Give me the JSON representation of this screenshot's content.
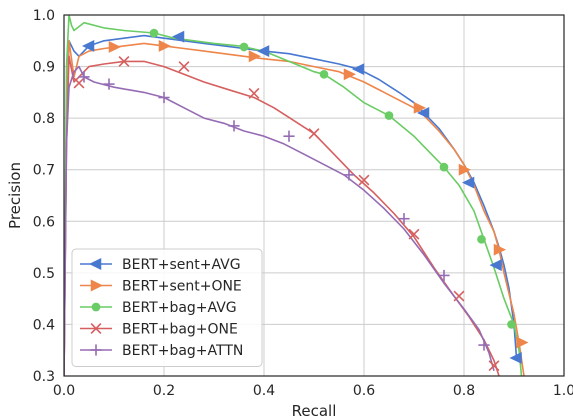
{
  "chart_data": {
    "type": "line",
    "title": "",
    "xlabel": "Recall",
    "ylabel": "Precision",
    "xlim": [
      0,
      1.0
    ],
    "ylim": [
      0.3,
      1.0
    ],
    "xticks": [
      0.0,
      0.2,
      0.4,
      0.6,
      0.8,
      1.0
    ],
    "yticks": [
      0.3,
      0.4,
      0.5,
      0.6,
      0.7,
      0.8,
      0.9,
      1.0
    ],
    "xtick_labels": [
      "0.0",
      "0.2",
      "0.4",
      "0.6",
      "0.8",
      "1.0"
    ],
    "ytick_labels": [
      "0.3",
      "0.4",
      "0.5",
      "0.6",
      "0.7",
      "0.8",
      "0.9",
      "1.0"
    ],
    "grid": true,
    "legend_position": "lower-left",
    "series": [
      {
        "name": "BERT+sent+AVG",
        "color": "#4878d0",
        "marker": "triangle-left",
        "x": [
          0.0,
          0.005,
          0.01,
          0.02,
          0.03,
          0.05,
          0.08,
          0.12,
          0.16,
          0.2,
          0.24,
          0.28,
          0.32,
          0.36,
          0.4,
          0.45,
          0.5,
          0.55,
          0.59,
          0.63,
          0.67,
          0.7,
          0.72,
          0.75,
          0.78,
          0.8,
          0.82,
          0.84,
          0.86,
          0.87,
          0.88,
          0.89,
          0.9,
          0.905
        ],
        "y": [
          0.3,
          0.78,
          0.95,
          0.93,
          0.92,
          0.94,
          0.95,
          0.955,
          0.96,
          0.955,
          0.95,
          0.945,
          0.94,
          0.935,
          0.93,
          0.925,
          0.915,
          0.905,
          0.895,
          0.875,
          0.85,
          0.83,
          0.81,
          0.78,
          0.74,
          0.71,
          0.675,
          0.63,
          0.58,
          0.55,
          0.515,
          0.47,
          0.4,
          0.335
        ],
        "marker_points": [
          [
            0.05,
            0.94
          ],
          [
            0.23,
            0.958
          ],
          [
            0.4,
            0.93
          ],
          [
            0.59,
            0.895
          ],
          [
            0.72,
            0.81
          ],
          [
            0.81,
            0.675
          ],
          [
            0.865,
            0.515
          ],
          [
            0.905,
            0.335
          ]
        ]
      },
      {
        "name": "BERT+sent+ONE",
        "color": "#ee854a",
        "marker": "triangle-right",
        "x": [
          0.0,
          0.005,
          0.01,
          0.02,
          0.03,
          0.05,
          0.08,
          0.12,
          0.16,
          0.2,
          0.24,
          0.28,
          0.32,
          0.36,
          0.4,
          0.45,
          0.5,
          0.55,
          0.6,
          0.65,
          0.7,
          0.72,
          0.75,
          0.78,
          0.8,
          0.82,
          0.84,
          0.86,
          0.87,
          0.88,
          0.89,
          0.9,
          0.91,
          0.92
        ],
        "y": [
          0.3,
          0.8,
          0.95,
          0.88,
          0.92,
          0.93,
          0.935,
          0.94,
          0.945,
          0.94,
          0.935,
          0.93,
          0.925,
          0.92,
          0.915,
          0.91,
          0.9,
          0.89,
          0.87,
          0.845,
          0.82,
          0.805,
          0.775,
          0.74,
          0.71,
          0.67,
          0.62,
          0.58,
          0.545,
          0.5,
          0.46,
          0.42,
          0.365,
          0.3
        ],
        "marker_points": [
          [
            0.1,
            0.938
          ],
          [
            0.2,
            0.94
          ],
          [
            0.38,
            0.92
          ],
          [
            0.57,
            0.885
          ],
          [
            0.71,
            0.82
          ],
          [
            0.8,
            0.7
          ],
          [
            0.87,
            0.545
          ],
          [
            0.915,
            0.365
          ]
        ]
      },
      {
        "name": "BERT+bag+AVG",
        "color": "#6acc64",
        "marker": "circle",
        "x": [
          0.0,
          0.005,
          0.01,
          0.015,
          0.02,
          0.04,
          0.08,
          0.12,
          0.18,
          0.22,
          0.26,
          0.3,
          0.35,
          0.4,
          0.45,
          0.5,
          0.52,
          0.56,
          0.6,
          0.65,
          0.7,
          0.73,
          0.76,
          0.79,
          0.82,
          0.84,
          0.86,
          0.88,
          0.9,
          0.91,
          0.915
        ],
        "y": [
          0.3,
          0.9,
          1.0,
          0.98,
          0.97,
          0.985,
          0.975,
          0.97,
          0.965,
          0.955,
          0.95,
          0.945,
          0.94,
          0.93,
          0.91,
          0.89,
          0.885,
          0.86,
          0.83,
          0.805,
          0.765,
          0.735,
          0.705,
          0.67,
          0.62,
          0.565,
          0.51,
          0.45,
          0.4,
          0.35,
          0.3
        ],
        "marker_points": [
          [
            0.18,
            0.965
          ],
          [
            0.36,
            0.938
          ],
          [
            0.52,
            0.885
          ],
          [
            0.65,
            0.805
          ],
          [
            0.76,
            0.705
          ],
          [
            0.835,
            0.565
          ],
          [
            0.895,
            0.4
          ]
        ]
      },
      {
        "name": "BERT+bag+ONE",
        "color": "#d65f5f",
        "marker": "x",
        "x": [
          0.0,
          0.005,
          0.01,
          0.02,
          0.03,
          0.05,
          0.08,
          0.12,
          0.16,
          0.2,
          0.24,
          0.28,
          0.33,
          0.38,
          0.42,
          0.46,
          0.5,
          0.54,
          0.58,
          0.62,
          0.66,
          0.7,
          0.74,
          0.78,
          0.81,
          0.84,
          0.86,
          0.87
        ],
        "y": [
          0.3,
          0.75,
          0.92,
          0.87,
          0.88,
          0.9,
          0.905,
          0.91,
          0.91,
          0.9,
          0.885,
          0.87,
          0.855,
          0.84,
          0.82,
          0.795,
          0.77,
          0.73,
          0.69,
          0.655,
          0.615,
          0.57,
          0.51,
          0.455,
          0.415,
          0.37,
          0.33,
          0.3
        ],
        "marker_points": [
          [
            0.03,
            0.868
          ],
          [
            0.12,
            0.91
          ],
          [
            0.24,
            0.9
          ],
          [
            0.38,
            0.848
          ],
          [
            0.5,
            0.77
          ],
          [
            0.6,
            0.68
          ],
          [
            0.7,
            0.575
          ],
          [
            0.79,
            0.455
          ],
          [
            0.86,
            0.32
          ]
        ]
      },
      {
        "name": "BERT+bag+ATTN",
        "color": "#956cb4",
        "marker": "plus",
        "x": [
          0.0,
          0.005,
          0.01,
          0.02,
          0.03,
          0.04,
          0.06,
          0.08,
          0.1,
          0.13,
          0.16,
          0.2,
          0.24,
          0.28,
          0.32,
          0.36,
          0.4,
          0.44,
          0.48,
          0.52,
          0.56,
          0.6,
          0.64,
          0.68,
          0.72,
          0.76,
          0.8,
          0.83,
          0.85,
          0.86
        ],
        "y": [
          0.3,
          0.75,
          0.86,
          0.89,
          0.9,
          0.88,
          0.87,
          0.865,
          0.86,
          0.855,
          0.85,
          0.84,
          0.82,
          0.8,
          0.79,
          0.775,
          0.765,
          0.75,
          0.73,
          0.71,
          0.69,
          0.66,
          0.625,
          0.585,
          0.535,
          0.48,
          0.43,
          0.39,
          0.345,
          0.31
        ],
        "marker_points": [
          [
            0.04,
            0.88
          ],
          [
            0.09,
            0.866
          ],
          [
            0.2,
            0.84
          ],
          [
            0.34,
            0.785
          ],
          [
            0.45,
            0.765
          ],
          [
            0.57,
            0.69
          ],
          [
            0.68,
            0.605
          ],
          [
            0.76,
            0.495
          ],
          [
            0.84,
            0.36
          ]
        ]
      }
    ]
  }
}
